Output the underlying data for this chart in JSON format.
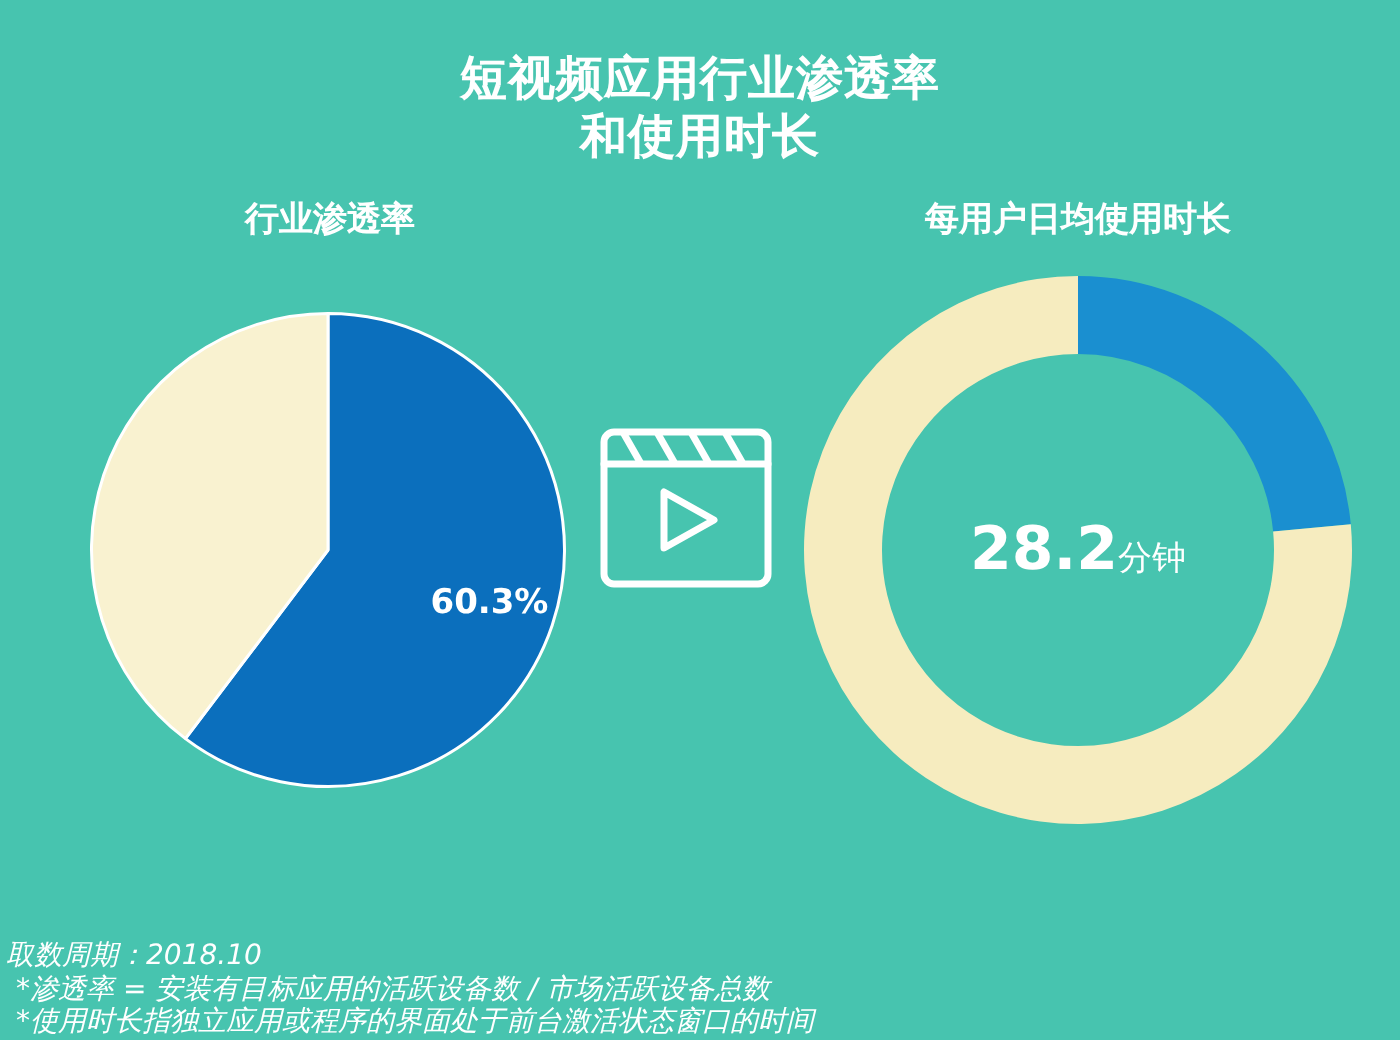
{
  "chart_data": [
    {
      "type": "other",
      "title": "短视频应用行业渗透率和使用时长",
      "annotations": [
        "取数周期：2018.10",
        "*渗透率 = 安装有目标应用的活跃设备数 / 市场活跃设备总数",
        "*使用时长指独立应用或程序的界面处于前台激活状态窗口的时间"
      ]
    },
    {
      "type": "pie",
      "title": "行业渗透率",
      "categories": [
        null,
        null
      ],
      "values": [
        60.3,
        39.7
      ],
      "colors": [
        "#0b6fbd",
        "#f9f2d0"
      ],
      "value_labels": [
        "60.3%",
        null
      ]
    },
    {
      "type": "donut",
      "title": "每用户日均使用时长",
      "categories": [
        null,
        null
      ],
      "values": [
        23.5,
        76.5
      ],
      "colors": [
        "#1a8fd0",
        "#f6ecbf"
      ],
      "annotations": [
        "28.2分钟"
      ]
    }
  ]
}
